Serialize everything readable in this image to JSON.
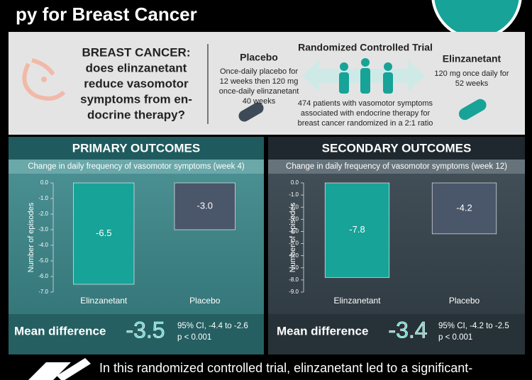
{
  "header": {
    "title": "py for Breast Cancer"
  },
  "study": {
    "question": [
      "BREAST CANCER:",
      "does elinzanetant",
      "reduce vasomotor",
      "symptoms from en-",
      "docrine therapy?"
    ],
    "placebo": {
      "name": "Placebo",
      "lines": [
        "Once-daily placebo for",
        "12 weeks then 120 mg",
        "once-daily elinzanetant",
        "40 weeks"
      ]
    },
    "design": {
      "name": "Randomized Controlled Trial",
      "lines": [
        "474 patients with vasomotor symptoms",
        "associated with endocrine therapy for",
        "breast cancer randomized in a 2:1 ratio"
      ]
    },
    "drug": {
      "name": "Elinzanetant",
      "lines": [
        "120 mg once daily for",
        "52 weeks"
      ]
    }
  },
  "chart_data": [
    {
      "type": "bar",
      "title": "PRIMARY OUTCOMES",
      "subtitle": "Change in daily frequency of vasomotor symptoms (week 4)",
      "y_label": "Number of episodes",
      "categories": [
        "Elinzanetant",
        "Placebo"
      ],
      "values": [
        -6.5,
        -3.0
      ],
      "value_labels": [
        "-6.5",
        "-3.0"
      ],
      "colors": [
        "#17a398",
        "#4a5669"
      ],
      "ylim": [
        -7,
        0
      ],
      "yticks": [
        {
          "value": 0,
          "label": "0.0"
        },
        {
          "value": -1,
          "label": "-1.0"
        },
        {
          "value": -2,
          "label": "-2.0"
        },
        {
          "value": -3,
          "label": "-3.0"
        },
        {
          "value": -4,
          "label": "-4.0"
        },
        {
          "value": -5,
          "label": "-5.0"
        },
        {
          "value": -6,
          "label": "-6.0"
        },
        {
          "value": -7,
          "label": "-7.0"
        }
      ],
      "mean_difference": {
        "label": "Mean difference",
        "value": "-3.5",
        "ci": "95% CI, -4.4 to -2.6",
        "p": "p < 0.001"
      }
    },
    {
      "type": "bar",
      "title": "SECONDARY OUTCOMES",
      "subtitle": "Change in daily frequency of vasomotor symptoms (week 12)",
      "y_label": "Number of episodes",
      "categories": [
        "Elinzanetant",
        "Placebo"
      ],
      "values": [
        -7.8,
        -4.2
      ],
      "value_labels": [
        "-7.8",
        "-4.2"
      ],
      "colors": [
        "#17a398",
        "#4a5669"
      ],
      "ylim": [
        -9,
        0
      ],
      "yticks": [
        {
          "value": 0,
          "label": "0.0"
        },
        {
          "value": -1,
          "label": "-1.0"
        },
        {
          "value": -2,
          "label": "-2.0"
        },
        {
          "value": -3,
          "label": "-3.0"
        },
        {
          "value": -4,
          "label": "-4.0"
        },
        {
          "value": -5,
          "label": "-5.0"
        },
        {
          "value": -6,
          "label": "-6.0"
        },
        {
          "value": -7,
          "label": "-7.0"
        },
        {
          "value": -8,
          "label": "-8.0"
        },
        {
          "value": -9,
          "label": "-9.0"
        }
      ],
      "mean_difference": {
        "label": "Mean difference",
        "value": "-3.4",
        "ci": "95% CI, -4.2 to -2.5",
        "p": "p < 0.001"
      }
    }
  ],
  "footer": {
    "text": "In this randomized controlled trial, elinzanetant led to a significant-"
  }
}
